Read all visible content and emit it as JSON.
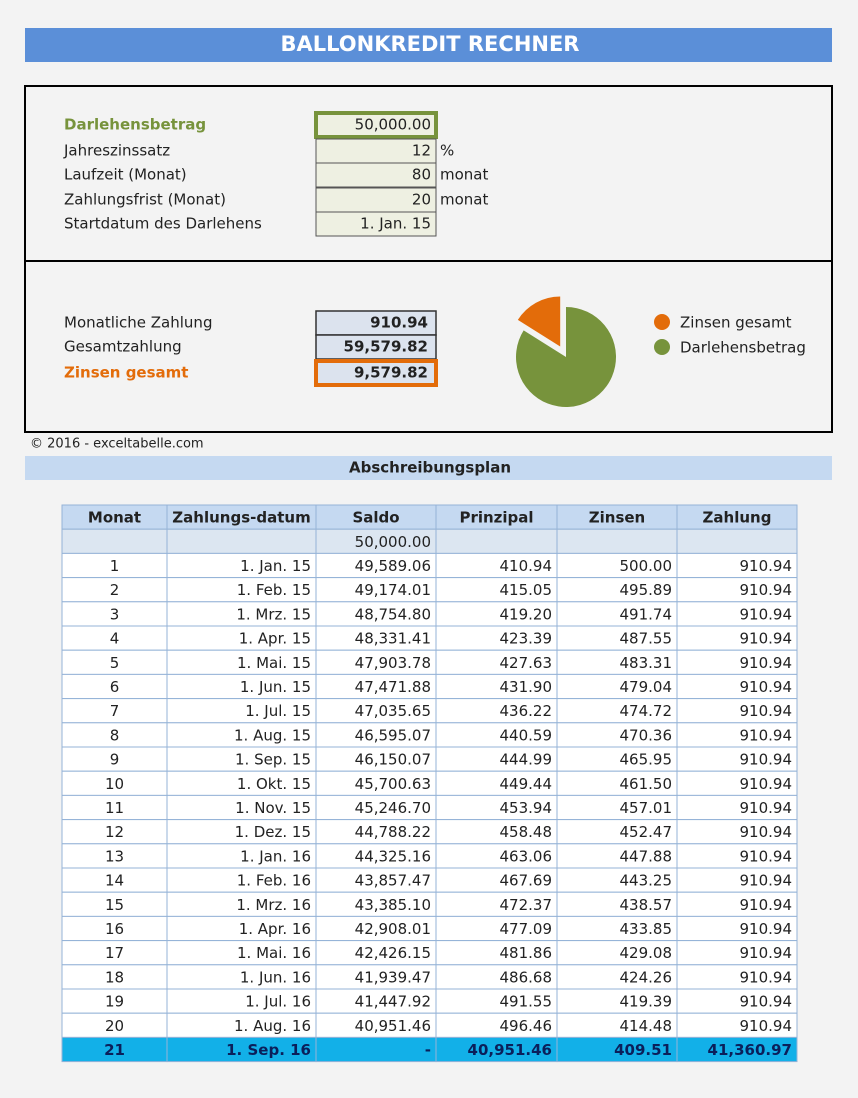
{
  "header": {
    "title": "BALLONKREDIT RECHNER"
  },
  "inputs": [
    {
      "label": "Darlehensbetrag",
      "value": "50,000.00"
    },
    {
      "label": "Jahreszinssatz",
      "value": "12",
      "unit": "%"
    },
    {
      "label": "Laufzeit (Monat)",
      "value": "80",
      "unit": "monat"
    },
    {
      "label": "Zahlungsfrist (Monat)",
      "value": "20",
      "unit": "monat"
    },
    {
      "label": "Startdatum des Darlehens",
      "value": "1. Jan. 15"
    }
  ],
  "results": [
    {
      "label": "Monatliche Zahlung",
      "value": "910.94"
    },
    {
      "label": "Gesamtzahlung",
      "value": "59,579.82"
    },
    {
      "label": "Zinsen gesamt",
      "value": "9,579.82"
    }
  ],
  "chart_data": {
    "type": "pie",
    "categories": [
      "Zinsen gesamt",
      "Darlehensbetrag"
    ],
    "values": [
      9579.82,
      50000
    ],
    "colors": [
      "#e36c0a",
      "#77933c"
    ]
  },
  "footer": {
    "copyright": "© 2016 - exceltabelle.com"
  },
  "table": {
    "title": "Abschreibungsplan",
    "columns": [
      "Monat",
      "Zahlungs-datum",
      "Saldo",
      "Prinzipal",
      "Zinsen",
      "Zahlung"
    ],
    "opening_balance": "50,000.00",
    "rows": [
      [
        "1",
        "1. Jan. 15",
        "49,589.06",
        "410.94",
        "500.00",
        "910.94"
      ],
      [
        "2",
        "1. Feb. 15",
        "49,174.01",
        "415.05",
        "495.89",
        "910.94"
      ],
      [
        "3",
        "1. Mrz. 15",
        "48,754.80",
        "419.20",
        "491.74",
        "910.94"
      ],
      [
        "4",
        "1. Apr. 15",
        "48,331.41",
        "423.39",
        "487.55",
        "910.94"
      ],
      [
        "5",
        "1. Mai. 15",
        "47,903.78",
        "427.63",
        "483.31",
        "910.94"
      ],
      [
        "6",
        "1. Jun. 15",
        "47,471.88",
        "431.90",
        "479.04",
        "910.94"
      ],
      [
        "7",
        "1. Jul. 15",
        "47,035.65",
        "436.22",
        "474.72",
        "910.94"
      ],
      [
        "8",
        "1. Aug. 15",
        "46,595.07",
        "440.59",
        "470.36",
        "910.94"
      ],
      [
        "9",
        "1. Sep. 15",
        "46,150.07",
        "444.99",
        "465.95",
        "910.94"
      ],
      [
        "10",
        "1. Okt. 15",
        "45,700.63",
        "449.44",
        "461.50",
        "910.94"
      ],
      [
        "11",
        "1. Nov. 15",
        "45,246.70",
        "453.94",
        "457.01",
        "910.94"
      ],
      [
        "12",
        "1. Dez. 15",
        "44,788.22",
        "458.48",
        "452.47",
        "910.94"
      ],
      [
        "13",
        "1. Jan. 16",
        "44,325.16",
        "463.06",
        "447.88",
        "910.94"
      ],
      [
        "14",
        "1. Feb. 16",
        "43,857.47",
        "467.69",
        "443.25",
        "910.94"
      ],
      [
        "15",
        "1. Mrz. 16",
        "43,385.10",
        "472.37",
        "438.57",
        "910.94"
      ],
      [
        "16",
        "1. Apr. 16",
        "42,908.01",
        "477.09",
        "433.85",
        "910.94"
      ],
      [
        "17",
        "1. Mai. 16",
        "42,426.15",
        "481.86",
        "429.08",
        "910.94"
      ],
      [
        "18",
        "1. Jun. 16",
        "41,939.47",
        "486.68",
        "424.26",
        "910.94"
      ],
      [
        "19",
        "1. Jul. 16",
        "41,447.92",
        "491.55",
        "419.39",
        "910.94"
      ],
      [
        "20",
        "1. Aug. 16",
        "40,951.46",
        "496.46",
        "414.48",
        "910.94"
      ],
      [
        "21",
        "1. Sep. 16",
        "-",
        "40,951.46",
        "409.51",
        "41,360.97"
      ]
    ]
  }
}
